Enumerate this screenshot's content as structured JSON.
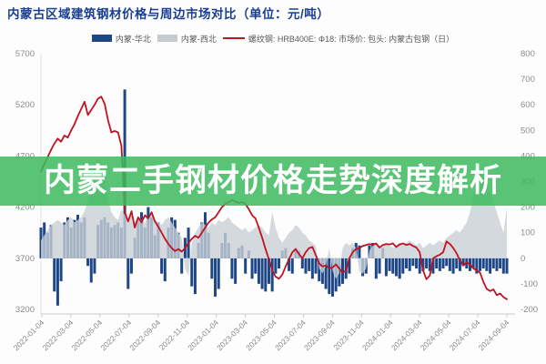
{
  "page": {
    "title": "内蒙古区域建筑钢材价格与周边市场对比（单位：元/吨）",
    "banner_text": "内蒙二手钢材价格走势深度解析"
  },
  "colors": {
    "title": "#1a3f92",
    "banner_green": "rgba(62,186,94,0.86)",
    "series_blue": "#1d4787",
    "series_gray": "rgba(201,207,214,0.80)",
    "series_gray_swatch": "#c6cbd1",
    "series_red": "#c01322",
    "axis_text": "#8c8c8c",
    "axis_line": "#cccccc"
  },
  "legend": {
    "items": [
      {
        "label": "内蒙-华北",
        "type": "rect",
        "color": "#1d4787"
      },
      {
        "label": "内蒙-西北",
        "type": "rect",
        "color": "#c6cbd1"
      },
      {
        "label": "螺纹钢: HRB400E: Φ18: 市场价: 包头: 内蒙古包钢（日）",
        "type": "line",
        "color": "#c01322"
      }
    ]
  },
  "chart_data": {
    "type": "combo",
    "note": "weekly samples approximated from daily chart, Jan 2022 - Sep 2024",
    "left_axis": {
      "min": 3200,
      "max": 5700,
      "ticks": [
        5700,
        5200,
        4700,
        4200,
        3700,
        3200
      ],
      "series": "price (yuan/ton)"
    },
    "right_axis": {
      "min": -200,
      "max": 800,
      "ticks": [
        800,
        700,
        600,
        500,
        400,
        300,
        200,
        100,
        0,
        -100,
        -200
      ],
      "series": "price spread (yuan/ton)"
    },
    "x_tick_labels": [
      "2022-01-04",
      "2022-03-04",
      "2022-05-04",
      "2022-07-04",
      "2022-09-04",
      "2022-11-04",
      "2023-01-04",
      "2023-03-04",
      "2023-05-04",
      "2023-07-04",
      "2023-09-04",
      "2023-11-04",
      "2024-01-04",
      "2024-03-04",
      "2024-05-04",
      "2024-07-04",
      "2024-09-04"
    ],
    "series": [
      {
        "name": "内蒙-华北",
        "type": "bar",
        "axis": "right",
        "color": "#1d4787",
        "values": [
          120,
          140,
          100,
          130,
          -130,
          -185,
          -90,
          140,
          160,
          120,
          150,
          170,
          140,
          160,
          -30,
          -95,
          -60,
          130,
          150,
          160,
          140,
          120,
          130,
          140,
          120,
          660,
          -120,
          -60,
          80,
          150,
          180,
          120,
          200,
          160,
          90,
          140,
          -60,
          -90,
          120,
          160,
          150,
          100,
          -60,
          80,
          120,
          -110,
          -140,
          60,
          140,
          180,
          100,
          -80,
          -150,
          -120,
          60,
          100,
          60,
          -80,
          -100,
          40,
          50,
          -60,
          30,
          -80,
          -60,
          -100,
          -120,
          -130,
          -100,
          -130,
          -60,
          -40,
          30,
          40,
          -50,
          -60,
          40,
          30,
          -40,
          -60,
          -50,
          -80,
          -60,
          -90,
          -100,
          -120,
          -140,
          -150,
          -130,
          -110,
          -100,
          -80,
          -60,
          40,
          60,
          50,
          -70,
          -60,
          50,
          60,
          -80,
          -60,
          40,
          -70,
          -50,
          -60,
          -70,
          -80,
          -60,
          -40,
          -50,
          -30,
          -40,
          -60,
          -50,
          -40,
          -50,
          -60,
          -40,
          -50,
          -40,
          -30,
          -50,
          -60,
          -40,
          -50,
          -30,
          -40,
          -50,
          -40,
          -60,
          -50,
          -40,
          -50,
          -60,
          -40,
          -50,
          -40,
          -60,
          -60
        ]
      },
      {
        "name": "内蒙-西北",
        "type": "area",
        "axis": "right",
        "color": "rgba(201,207,214,0.80)",
        "values": [
          70,
          90,
          110,
          130,
          140,
          150,
          140,
          130,
          150,
          160,
          140,
          150,
          160,
          185,
          225,
          280,
          340,
          395,
          370,
          300,
          230,
          180,
          160,
          150,
          190,
          170,
          150,
          170,
          140,
          160,
          150,
          140,
          160,
          170,
          150,
          140,
          130,
          150,
          160,
          140,
          120,
          100,
          80,
          -40,
          -70,
          60,
          100,
          120,
          140,
          130,
          120,
          140,
          130,
          150,
          140,
          150,
          160,
          140,
          130,
          120,
          110,
          120,
          100,
          110,
          120,
          130,
          120,
          100,
          90,
          180,
          120,
          80,
          60,
          80,
          100,
          110,
          130,
          120,
          100,
          90,
          70,
          60,
          50,
          -40,
          -60,
          -30,
          40,
          -50,
          -80,
          -60,
          40,
          60,
          50,
          60,
          40,
          -50,
          -60,
          -40,
          30,
          50,
          60,
          40,
          50,
          60,
          50,
          40,
          50,
          60,
          50,
          60,
          70,
          60,
          50,
          60,
          40,
          50,
          60,
          50,
          60,
          70,
          60,
          80,
          90,
          100,
          110,
          100,
          120,
          140,
          180,
          240,
          300,
          350,
          340,
          300,
          260,
          220,
          180,
          140,
          100,
          200
        ]
      },
      {
        "name": "螺纹钢: HRB400E: Φ18: 市场价: 包头: 内蒙古包钢（日）",
        "type": "line",
        "axis": "left",
        "color": "#c01322",
        "values": [
          4550,
          4620,
          4690,
          4760,
          4820,
          4870,
          4840,
          4900,
          4880,
          4950,
          5010,
          5090,
          5160,
          5230,
          5100,
          5150,
          5200,
          5260,
          5280,
          5210,
          5050,
          4930,
          4945,
          4930,
          4800,
          4150,
          4060,
          4160,
          4000,
          4100,
          4050,
          4120,
          4090,
          4150,
          4060,
          4010,
          3950,
          3890,
          3840,
          3800,
          3770,
          3790,
          3765,
          3800,
          3850,
          3890,
          3920,
          3900,
          3950,
          4000,
          4050,
          4080,
          4100,
          4150,
          4200,
          4230,
          4250,
          4270,
          4255,
          4240,
          4250,
          4230,
          4180,
          4120,
          4090,
          4000,
          3900,
          3790,
          3690,
          3580,
          3520,
          3500,
          3540,
          3620,
          3690,
          3760,
          3790,
          3740,
          3700,
          3760,
          3800,
          3810,
          3730,
          3650,
          3620,
          3630,
          3600,
          3610,
          3640,
          3600,
          3560,
          3580,
          3700,
          3760,
          3790,
          3800,
          3820,
          3830,
          3840,
          3830,
          3845,
          3805,
          3830,
          3840,
          3835,
          3845,
          3810,
          3835,
          3845,
          3830,
          3840,
          3820,
          3805,
          3760,
          3580,
          3495,
          3530,
          3700,
          3720,
          3735,
          3760,
          3865,
          3840,
          3800,
          3750,
          3680,
          3630,
          3660,
          3640,
          3600,
          3580,
          3560,
          3470,
          3400,
          3380,
          3395,
          3340,
          3355,
          3320,
          3300
        ]
      }
    ]
  }
}
